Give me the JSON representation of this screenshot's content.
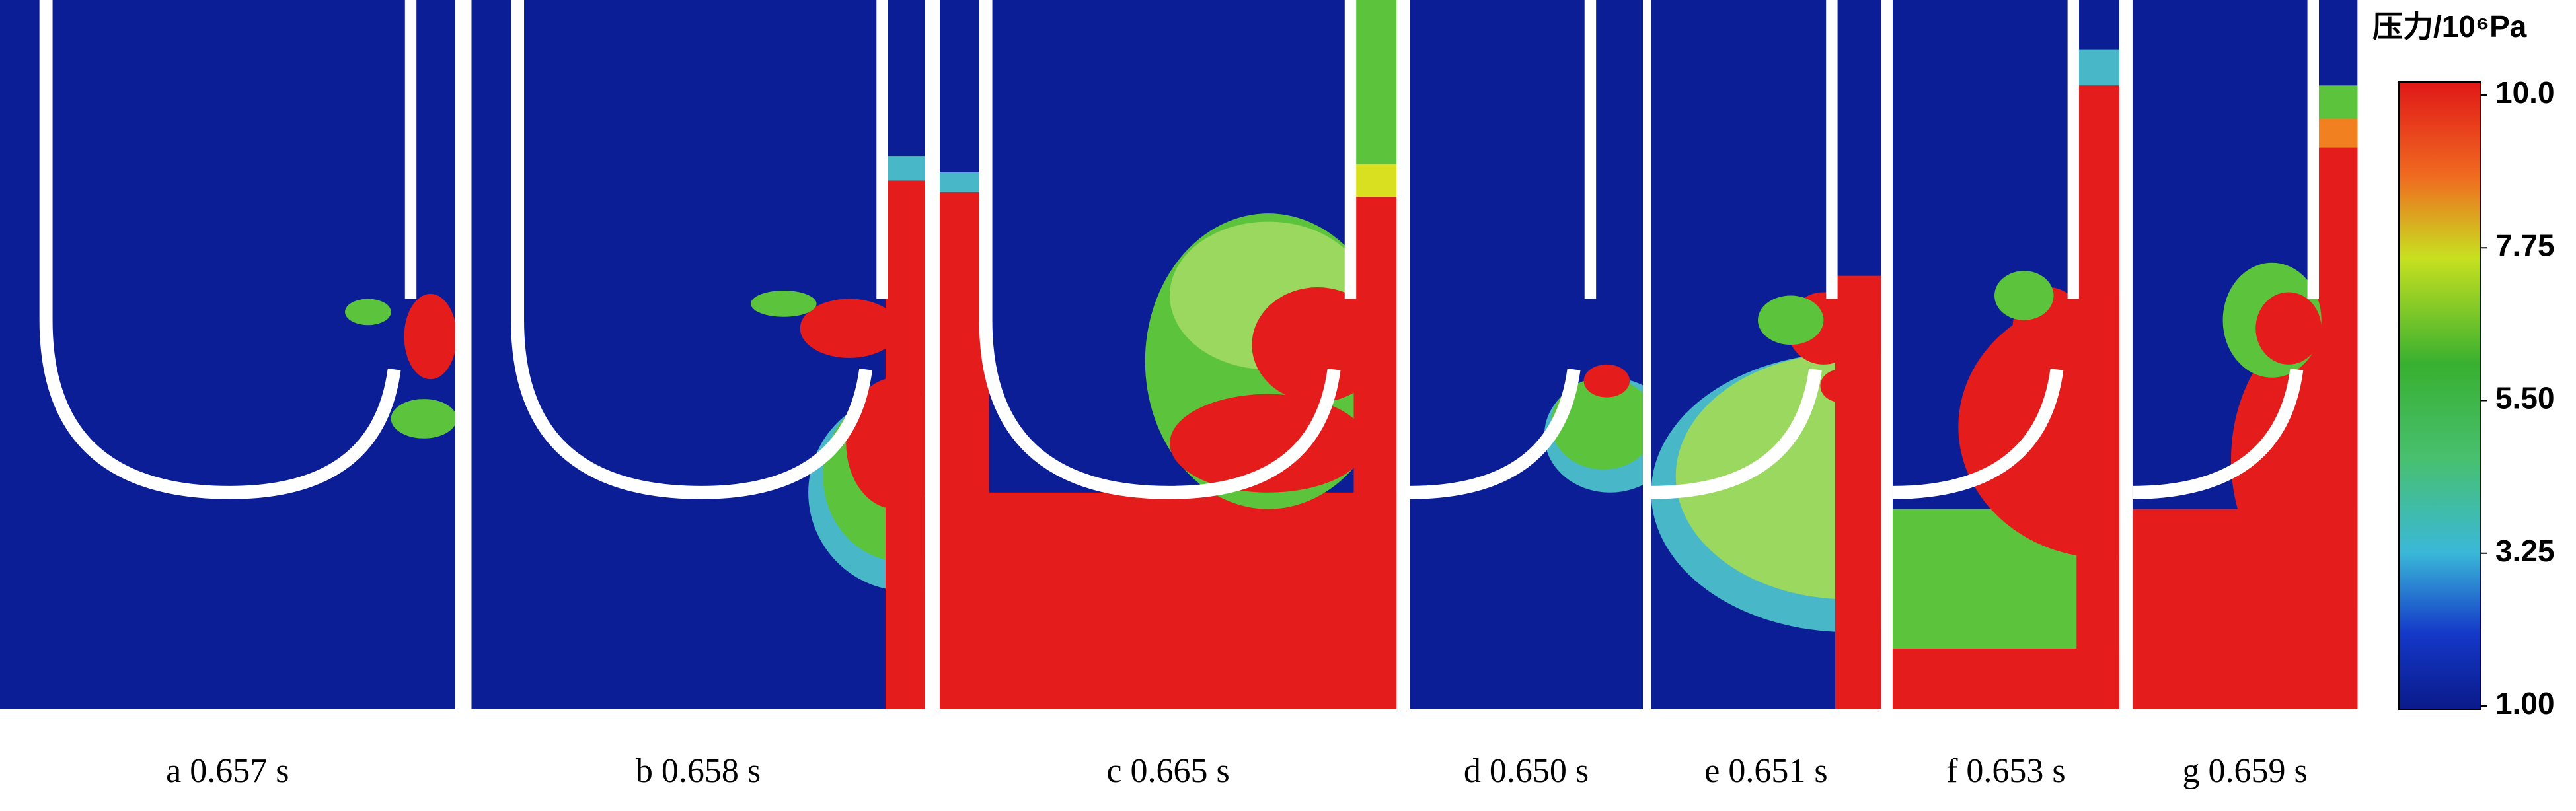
{
  "figure": {
    "panels": [
      {
        "label": "a  0.657 s"
      },
      {
        "label": "b  0.658 s"
      },
      {
        "label": "c  0.665 s"
      },
      {
        "label": "d  0.650 s"
      },
      {
        "label": "e  0.651 s"
      },
      {
        "label": "f  0.653 s"
      },
      {
        "label": "g  0.659 s"
      }
    ],
    "colorbar": {
      "title": "压力/10⁶Pa",
      "ticks": [
        {
          "value": 10,
          "label": "10.0"
        },
        {
          "value": 7.75,
          "label": "7.75"
        },
        {
          "value": 5.5,
          "label": "5.50"
        },
        {
          "value": 3.25,
          "label": "3.25"
        },
        {
          "value": 1,
          "label": "1.00"
        }
      ]
    }
  }
}
